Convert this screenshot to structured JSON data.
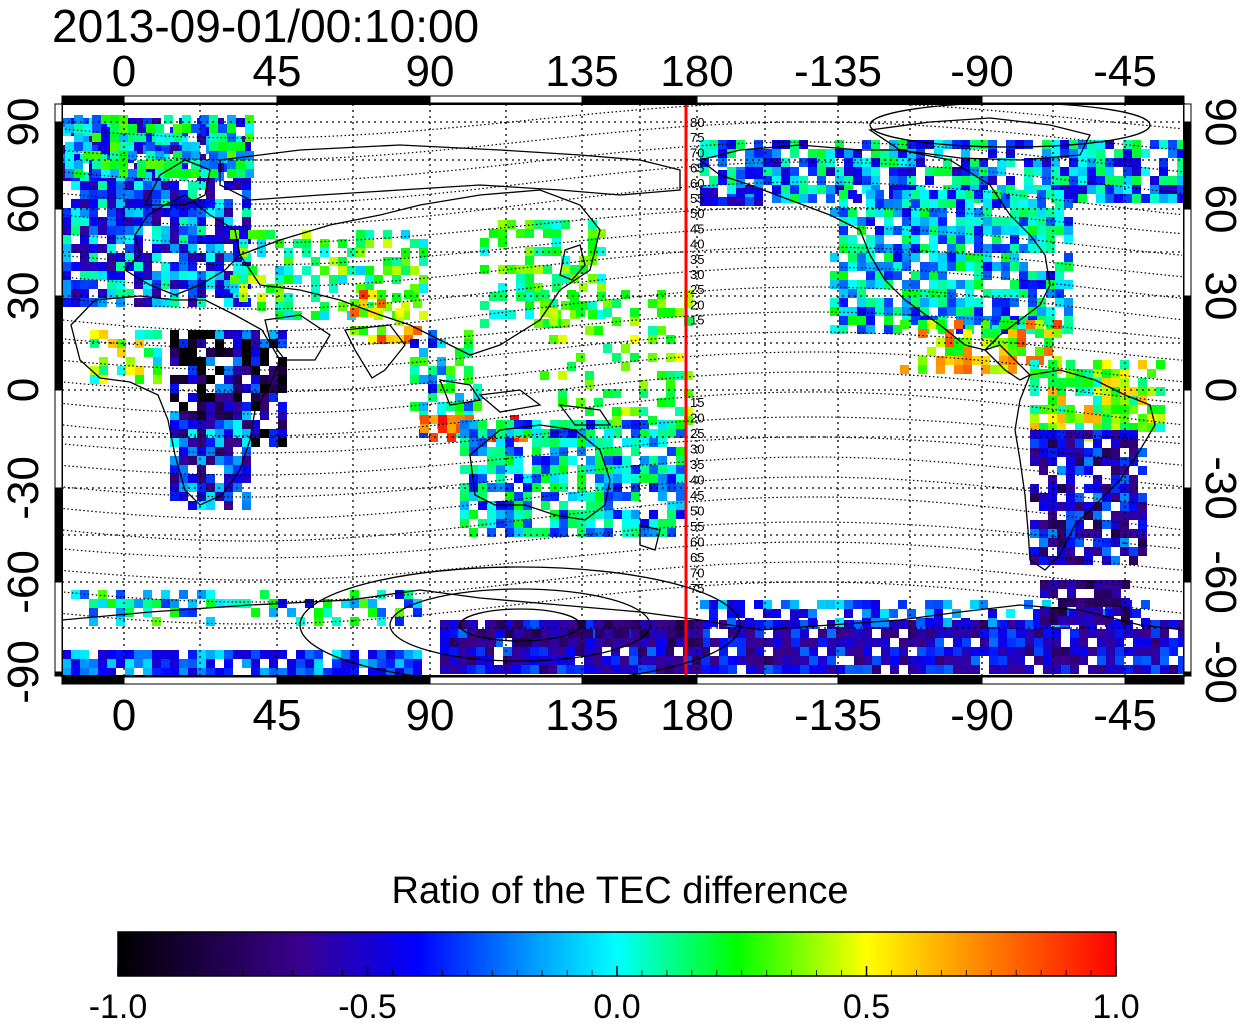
{
  "title": "2013-09-01/00:10:00",
  "colorbar": {
    "label": "Ratio of the TEC difference",
    "ticks": [
      "-1.0",
      "-0.5",
      "0.0",
      "0.5",
      "1.0"
    ],
    "colors": [
      "#000000",
      "#3a008c",
      "#0000ff",
      "#00ffff",
      "#00ff00",
      "#ffff00",
      "#ff8000",
      "#ff0000"
    ]
  },
  "map": {
    "lon_top": [
      "0",
      "45",
      "90",
      "135",
      "180",
      "-135",
      "-90",
      "-45"
    ],
    "lon_bottom": [
      "0",
      "45",
      "90",
      "135",
      "180",
      "-135",
      "-90",
      "-45"
    ],
    "lat_left": [
      "90",
      "60",
      "30",
      "0",
      "-30",
      "-60",
      "-90"
    ],
    "lat_right": [
      "90",
      "60",
      "30",
      "0",
      "-30",
      "-60",
      "-90"
    ],
    "contour_labels_north": [
      "80",
      "75",
      "70",
      "65",
      "60",
      "55",
      "50",
      "45",
      "40",
      "35",
      "30",
      "25",
      "20",
      "15"
    ],
    "contour_labels_south": [
      "15",
      "20",
      "25",
      "30",
      "35",
      "40",
      "45",
      "50",
      "55",
      "60",
      "65",
      "70",
      "75"
    ],
    "meridian_line": {
      "lon": 180,
      "color": "#ff0000"
    }
  }
}
